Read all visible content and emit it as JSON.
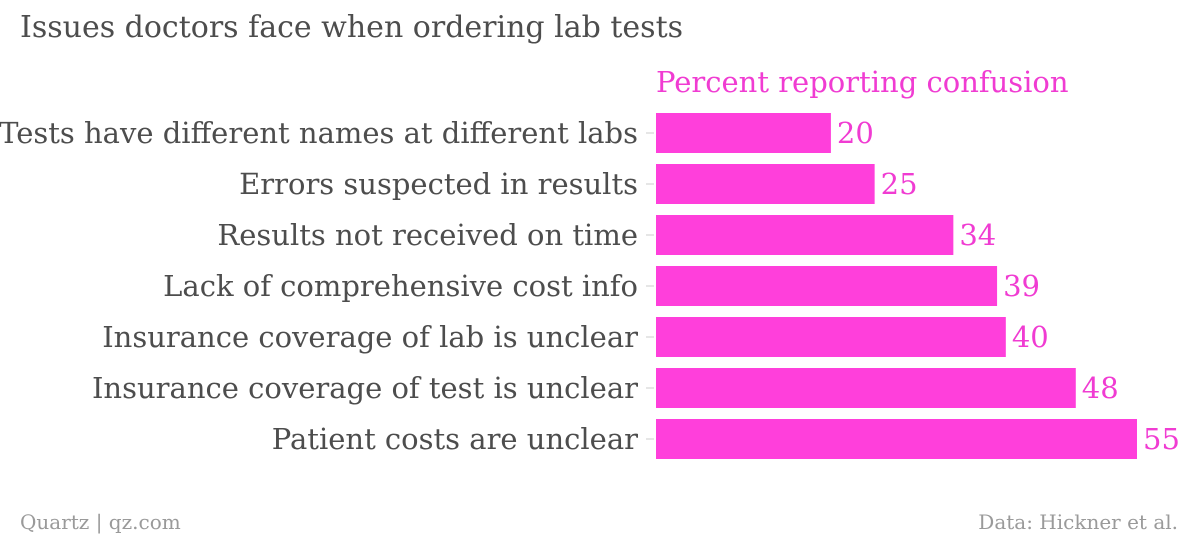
{
  "title": "Issues doctors face when ordering lab tests",
  "footer": {
    "credit": "Quartz | qz.com",
    "source": "Data: Hickner et al."
  },
  "colors": {
    "bar": "#ff3fdb",
    "series_label": "#f03cd2",
    "category_text": "#4d4d4d",
    "footer_text": "#9a9a9a",
    "tick": "#cccccc"
  },
  "chart_data": {
    "type": "bar",
    "orientation": "horizontal",
    "title": "Issues doctors face when ordering lab tests",
    "categories": [
      "Tests have different names at different labs",
      "Errors suspected in results",
      "Results not received on time",
      "Lack of comprehensive cost info",
      "Insurance coverage of lab is unclear",
      "Insurance coverage of test is unclear",
      "Patient costs are unclear"
    ],
    "series": [
      {
        "name": "Percent reporting confusion",
        "values": [
          20,
          25,
          34,
          39,
          40,
          48,
          55
        ]
      }
    ],
    "xlim": [
      0,
      55
    ],
    "grid": false,
    "data_labels": true
  }
}
